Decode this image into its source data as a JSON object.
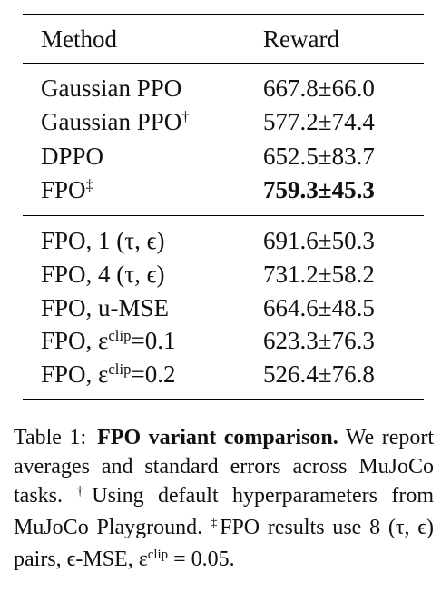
{
  "table": {
    "header": [
      "Method",
      "Reward"
    ],
    "groups": [
      [
        {
          "method": "Gaussian PPO",
          "reward": "667.8±66.0"
        },
        {
          "method": "Gaussian PPO",
          "method_sup": "†",
          "reward": "577.2±74.4"
        },
        {
          "method": "DPPO",
          "reward": "652.5±83.7"
        },
        {
          "method": "FPO",
          "method_sup": "‡",
          "reward": "759.3±45.3",
          "bold": true
        }
      ],
      [
        {
          "method": "FPO, 1 (τ, ϵ)",
          "reward": "691.6±50.3"
        },
        {
          "method": "FPO, 4 (τ, ϵ)",
          "reward": "731.2±58.2"
        },
        {
          "method": "FPO, u-MSE",
          "reward": "664.6±48.5"
        },
        {
          "method": "FPO, ε",
          "method_sup": "clip",
          "method_tail": "=0.1",
          "reward": "623.3±76.3"
        },
        {
          "method": "FPO, ε",
          "method_sup": "clip",
          "method_tail": "=0.2",
          "reward": "526.4±76.8"
        }
      ]
    ]
  },
  "caption": {
    "label": "Table 1:",
    "title": "FPO variant comparison.",
    "body": [
      {
        "text": "We report averages and standard errors across MuJoCo tasks. "
      },
      {
        "sup": "†"
      },
      {
        "text": "Using default hyperparameters from MuJoCo Playground. "
      },
      {
        "sup": "‡"
      },
      {
        "text": "FPO results use 8 (τ, ϵ) pairs, ϵ-MSE, ε"
      },
      {
        "sup": "clip"
      },
      {
        "text": " = 0.05."
      }
    ]
  }
}
